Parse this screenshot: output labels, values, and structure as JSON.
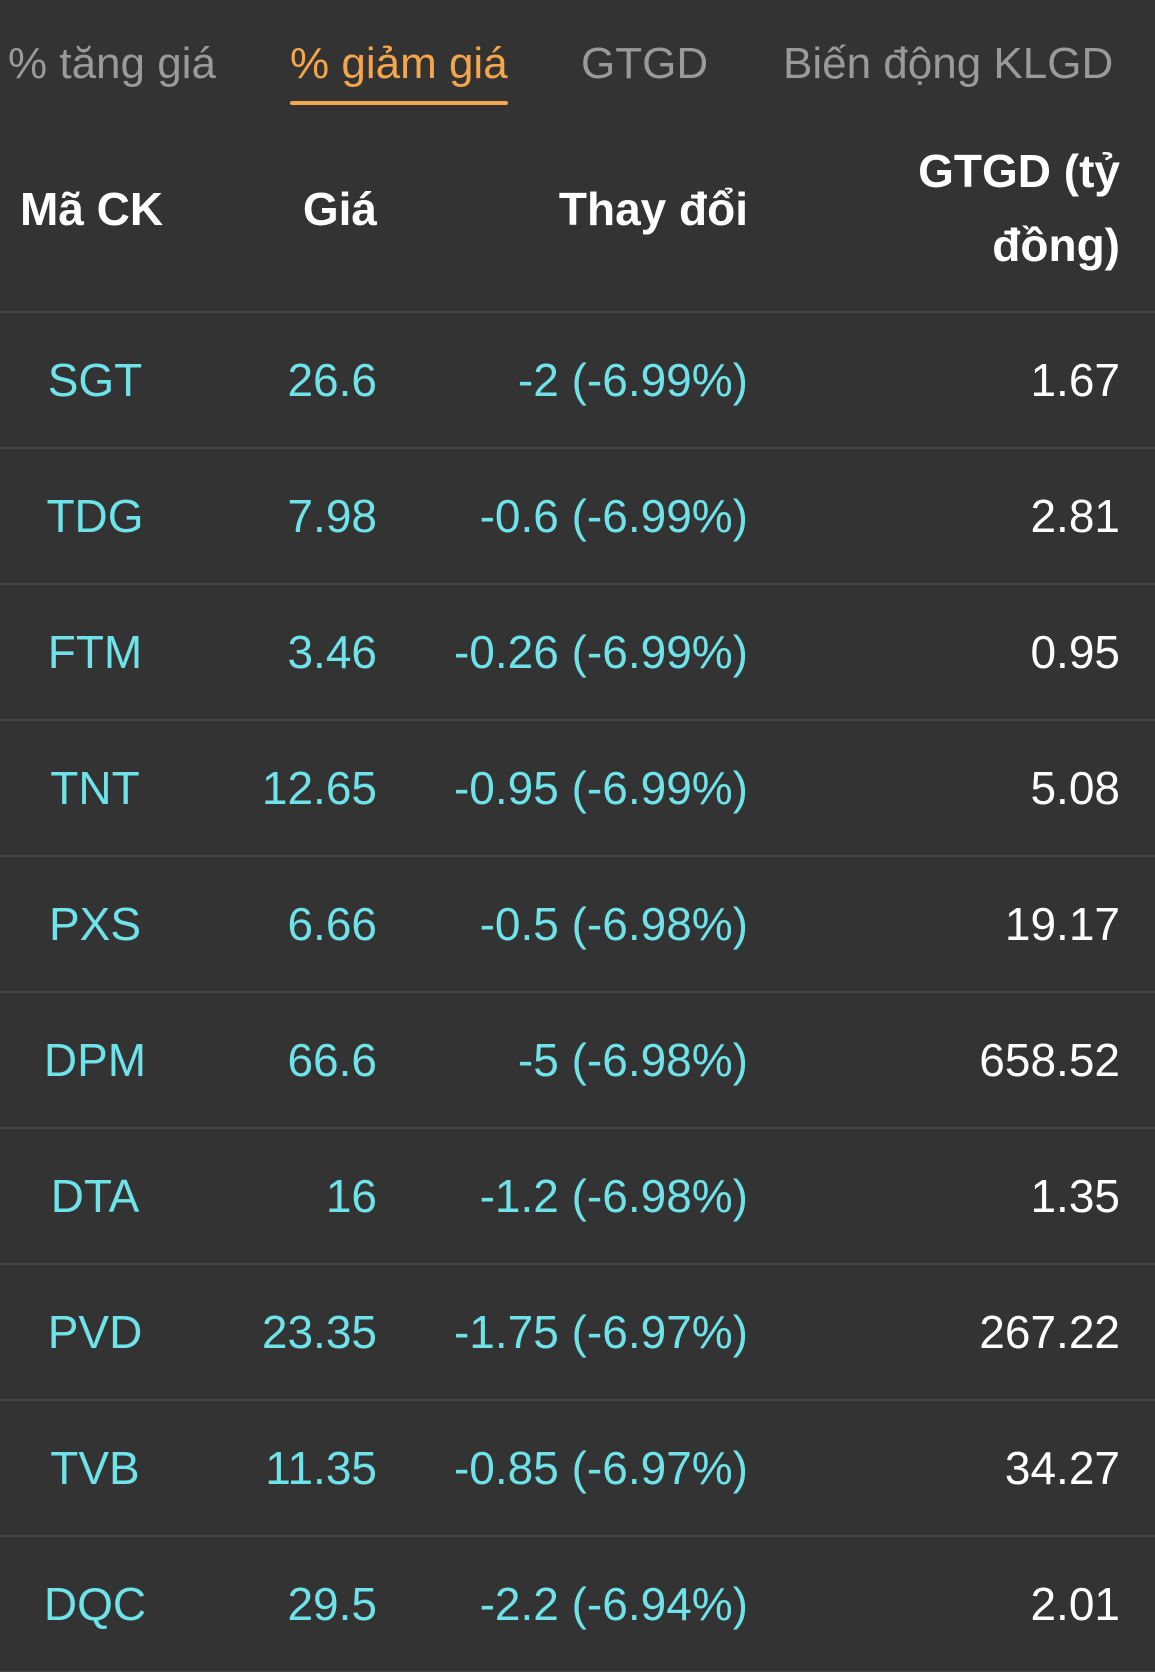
{
  "tabs": [
    {
      "label": "% tăng giá",
      "active": false
    },
    {
      "label": "% giảm giá",
      "active": true
    },
    {
      "label": "GTGD",
      "active": false
    },
    {
      "label": "Biến động KLGD",
      "active": false
    }
  ],
  "columns": {
    "code": "Mã CK",
    "price": "Giá",
    "change": "Thay đổi",
    "value": "GTGD (tỷ đồng)"
  },
  "rows": [
    {
      "code": "SGT",
      "price": "26.6",
      "change": "-2 (-6.99%)",
      "value": "1.67"
    },
    {
      "code": "TDG",
      "price": "7.98",
      "change": "-0.6 (-6.99%)",
      "value": "2.81"
    },
    {
      "code": "FTM",
      "price": "3.46",
      "change": "-0.26 (-6.99%)",
      "value": "0.95"
    },
    {
      "code": "TNT",
      "price": "12.65",
      "change": "-0.95 (-6.99%)",
      "value": "5.08"
    },
    {
      "code": "PXS",
      "price": "6.66",
      "change": "-0.5 (-6.98%)",
      "value": "19.17"
    },
    {
      "code": "DPM",
      "price": "66.6",
      "change": "-5 (-6.98%)",
      "value": "658.52"
    },
    {
      "code": "DTA",
      "price": "16",
      "change": "-1.2 (-6.98%)",
      "value": "1.35"
    },
    {
      "code": "PVD",
      "price": "23.35",
      "change": "-1.75 (-6.97%)",
      "value": "267.22"
    },
    {
      "code": "TVB",
      "price": "11.35",
      "change": "-0.85 (-6.97%)",
      "value": "34.27"
    },
    {
      "code": "DQC",
      "price": "29.5",
      "change": "-2.2 (-6.94%)",
      "value": "2.01"
    }
  ],
  "colors": {
    "background": "#333333",
    "active_tab": "#f5a54a",
    "inactive_tab": "#9a9a9a",
    "down_value": "#6fe3ea",
    "text": "#ffffff",
    "divider": "#454545"
  }
}
